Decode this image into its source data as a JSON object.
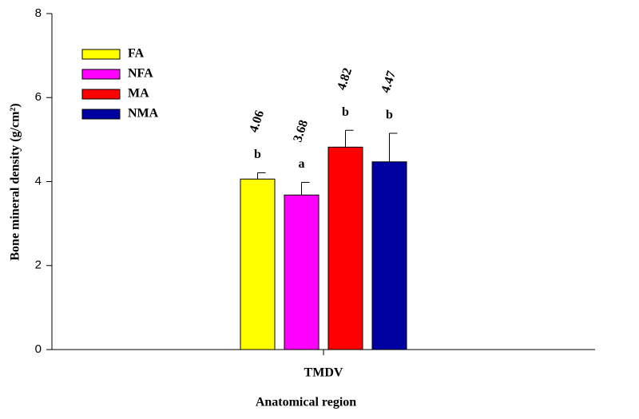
{
  "chart_data": {
    "type": "bar",
    "categories": [
      "TMDV"
    ],
    "series": [
      {
        "name": "FA",
        "color": "#ffff00",
        "values": [
          4.06
        ],
        "errors": [
          0.15
        ],
        "letters": [
          "b"
        ]
      },
      {
        "name": "NFA",
        "color": "#ff00ff",
        "values": [
          3.68
        ],
        "errors": [
          0.3
        ],
        "letters": [
          "a"
        ]
      },
      {
        "name": "MA",
        "color": "#ff0000",
        "values": [
          4.82
        ],
        "errors": [
          0.4
        ],
        "letters": [
          "b"
        ]
      },
      {
        "name": "NMA",
        "color": "#0000a0",
        "values": [
          4.47
        ],
        "errors": [
          0.68
        ],
        "letters": [
          "b"
        ]
      }
    ],
    "xlabel": "Anatomical region",
    "ylabel": "Bone mineral density (g/cm²)",
    "ylim": [
      0,
      8
    ],
    "yticks": [
      0,
      2,
      4,
      6,
      8
    ],
    "legend": "upper left"
  }
}
